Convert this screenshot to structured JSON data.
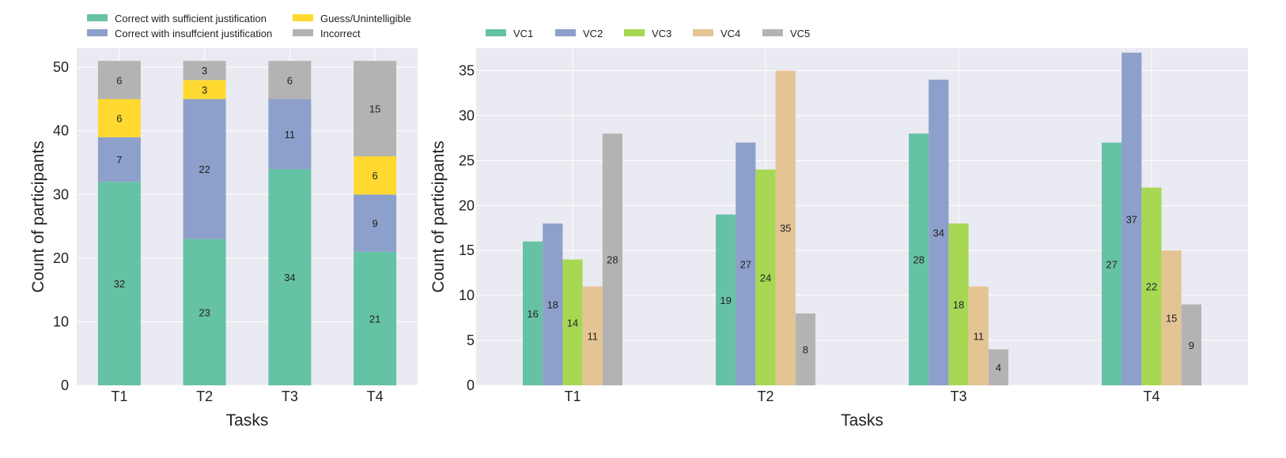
{
  "chart_data": [
    {
      "type": "bar",
      "stacked": true,
      "categories": [
        "T1",
        "T2",
        "T3",
        "T4"
      ],
      "series": [
        {
          "name": "Correct with sufficient justification",
          "color": "#66c2a5",
          "values": [
            32,
            23,
            34,
            21
          ]
        },
        {
          "name": "Correct with insuffcient justification",
          "color": "#8da0cb",
          "values": [
            7,
            22,
            11,
            9
          ]
        },
        {
          "name": "Guess/Unintelligible",
          "color": "#ffd92f",
          "values": [
            6,
            3,
            0,
            6
          ]
        },
        {
          "name": "Incorrect",
          "color": "#b3b3b3",
          "values": [
            6,
            3,
            6,
            15
          ]
        }
      ],
      "xlabel": "Tasks",
      "ylabel": "Count of participants",
      "ylim": [
        0,
        53
      ],
      "yticks": [
        0,
        10,
        20,
        30,
        40,
        50
      ],
      "legend_position": "top"
    },
    {
      "type": "bar",
      "stacked": false,
      "categories": [
        "T1",
        "T2",
        "T3",
        "T4"
      ],
      "series": [
        {
          "name": "VC1",
          "color": "#66c2a5",
          "values": [
            16,
            19,
            28,
            27
          ]
        },
        {
          "name": "VC2",
          "color": "#8da0cb",
          "values": [
            18,
            27,
            34,
            37
          ]
        },
        {
          "name": "VC3",
          "color": "#a6d854",
          "values": [
            14,
            24,
            18,
            22
          ]
        },
        {
          "name": "VC4",
          "color": "#e5c494",
          "values": [
            11,
            35,
            11,
            15
          ]
        },
        {
          "name": "VC5",
          "color": "#b3b3b3",
          "values": [
            28,
            8,
            4,
            9
          ]
        }
      ],
      "xlabel": "Tasks",
      "ylabel": "Count of participants",
      "ylim": [
        0,
        37.5
      ],
      "yticks": [
        0,
        5,
        10,
        15,
        20,
        25,
        30,
        35
      ],
      "legend_position": "top"
    }
  ],
  "colors": {
    "plot_background": "#eaeaf2",
    "grid": "#ffffff",
    "text": "#222222"
  }
}
